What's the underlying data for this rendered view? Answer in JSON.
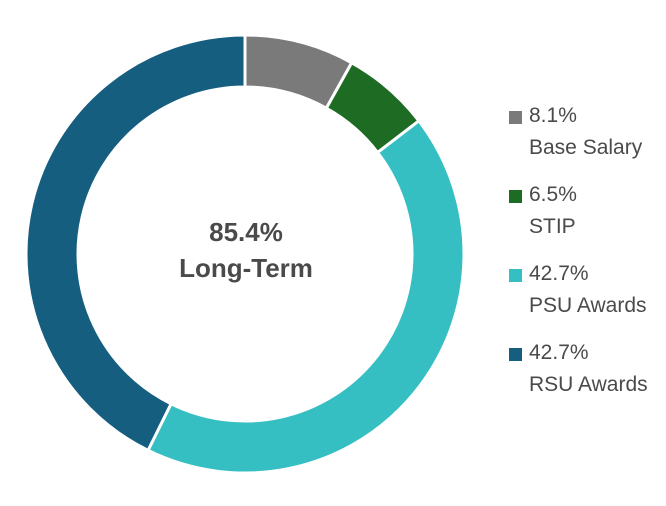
{
  "chart_data": {
    "type": "pie",
    "variant": "donut",
    "center": {
      "value": "85.4%",
      "label": "Long-Term"
    },
    "legend_position": "right",
    "slices": [
      {
        "label": "Base Salary",
        "value": 8.1,
        "display": "8.1%",
        "color": "#7a7a7a"
      },
      {
        "label": "STIP",
        "value": 6.5,
        "display": "6.5%",
        "color": "#1e6b24"
      },
      {
        "label": "PSU Awards",
        "value": 42.7,
        "display": "42.7%",
        "color": "#36bfc2"
      },
      {
        "label": "RSU Awards",
        "value": 42.7,
        "display": "42.7%",
        "color": "#165e80"
      }
    ]
  }
}
